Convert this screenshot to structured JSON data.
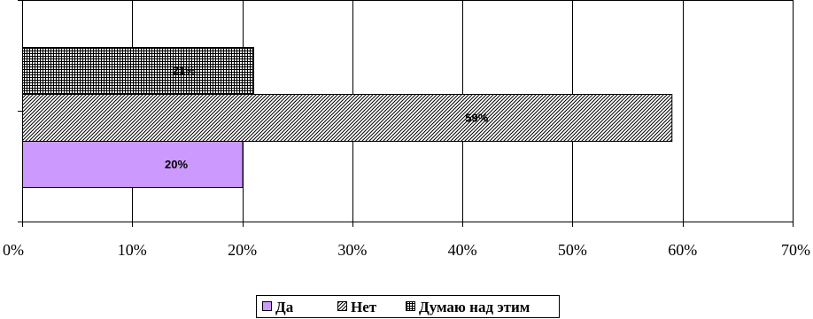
{
  "chart_data": {
    "type": "bar",
    "orientation": "horizontal",
    "title": "",
    "xlabel": "",
    "ylabel": "",
    "xlim": [
      0,
      70
    ],
    "x_ticks": [
      "0%",
      "10%",
      "20%",
      "30%",
      "40%",
      "50%",
      "60%",
      "70%"
    ],
    "grid": "vertical",
    "legend_position": "bottom",
    "series": [
      {
        "name": "Да",
        "value": 20,
        "label": "20%",
        "color": "#cc99ff",
        "pattern": "solid"
      },
      {
        "name": "Нет",
        "value": 59,
        "label": "59%",
        "color": "#000000",
        "pattern": "diagonal-hatch"
      },
      {
        "name": "Думаю над этим",
        "value": 21,
        "label": "21%",
        "color": "#ffff99",
        "pattern": "grid-hatch"
      }
    ]
  }
}
